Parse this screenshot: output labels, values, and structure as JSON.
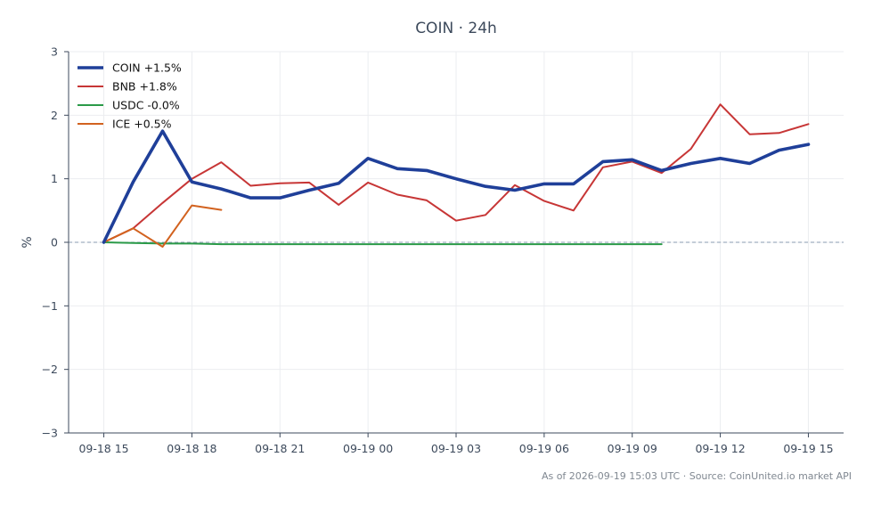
{
  "chart_data": {
    "type": "line",
    "title": "COIN · 24h",
    "xlabel": "",
    "ylabel": "%",
    "ylim": [
      -3,
      3
    ],
    "yticks": [
      {
        "value": -3,
        "label": "−3"
      },
      {
        "value": -2,
        "label": "−2"
      },
      {
        "value": -1,
        "label": "−1"
      },
      {
        "value": 0,
        "label": "0"
      },
      {
        "value": 1,
        "label": "1"
      },
      {
        "value": 2,
        "label": "2"
      },
      {
        "value": 3,
        "label": "3"
      }
    ],
    "xlim": [
      "2026-09-18 13:48",
      "2026-09-19 16:12"
    ],
    "xticks": [
      {
        "x": "2026-09-18 15:00",
        "label": "09-18 15"
      },
      {
        "x": "2026-09-18 18:00",
        "label": "09-18 18"
      },
      {
        "x": "2026-09-18 21:00",
        "label": "09-18 21"
      },
      {
        "x": "2026-09-19 00:00",
        "label": "09-19 00"
      },
      {
        "x": "2026-09-19 03:00",
        "label": "09-19 03"
      },
      {
        "x": "2026-09-19 06:00",
        "label": "09-19 06"
      },
      {
        "x": "2026-09-19 09:00",
        "label": "09-19 09"
      },
      {
        "x": "2026-09-19 12:00",
        "label": "09-19 12"
      },
      {
        "x": "2026-09-19 15:00",
        "label": "09-19 15"
      }
    ],
    "grid": true,
    "reference_line": {
      "y": 0,
      "style": "dashed"
    },
    "legend": "top-left",
    "series": [
      {
        "name": "COIN +1.5%",
        "color": "#1f3f99",
        "linewidth": "thick",
        "x": [
          "2026-09-18 15:00",
          "2026-09-18 16:00",
          "2026-09-18 17:00",
          "2026-09-18 18:00",
          "2026-09-18 19:00",
          "2026-09-18 20:00",
          "2026-09-18 21:00",
          "2026-09-18 22:00",
          "2026-09-18 23:00",
          "2026-09-19 00:00",
          "2026-09-19 01:00",
          "2026-09-19 02:00",
          "2026-09-19 03:00",
          "2026-09-19 04:00",
          "2026-09-19 05:00",
          "2026-09-19 06:00",
          "2026-09-19 07:00",
          "2026-09-19 08:00",
          "2026-09-19 09:00",
          "2026-09-19 10:00",
          "2026-09-19 11:00",
          "2026-09-19 12:00",
          "2026-09-19 13:00",
          "2026-09-19 14:00",
          "2026-09-19 15:00"
        ],
        "values": [
          0.0,
          0.95,
          1.75,
          0.95,
          0.84,
          0.7,
          0.7,
          0.82,
          0.93,
          1.32,
          1.16,
          1.13,
          1.0,
          0.88,
          0.82,
          0.92,
          0.92,
          1.27,
          1.3,
          1.13,
          1.24,
          1.32,
          1.24,
          1.45,
          1.54
        ]
      },
      {
        "name": "BNB +1.8%",
        "color": "#c73636",
        "linewidth": "normal",
        "x": [
          "2026-09-18 15:00",
          "2026-09-18 16:00",
          "2026-09-18 17:00",
          "2026-09-18 18:00",
          "2026-09-18 19:00",
          "2026-09-18 20:00",
          "2026-09-18 21:00",
          "2026-09-18 22:00",
          "2026-09-18 23:00",
          "2026-09-19 00:00",
          "2026-09-19 01:00",
          "2026-09-19 02:00",
          "2026-09-19 03:00",
          "2026-09-19 04:00",
          "2026-09-19 05:00",
          "2026-09-19 06:00",
          "2026-09-19 07:00",
          "2026-09-19 08:00",
          "2026-09-19 09:00",
          "2026-09-19 10:00",
          "2026-09-19 11:00",
          "2026-09-19 12:00",
          "2026-09-19 13:00",
          "2026-09-19 14:00",
          "2026-09-19 15:00"
        ],
        "values": [
          0.0,
          0.22,
          0.62,
          1.0,
          1.26,
          0.89,
          0.93,
          0.94,
          0.59,
          0.94,
          0.75,
          0.66,
          0.34,
          0.43,
          0.9,
          0.65,
          0.5,
          1.18,
          1.27,
          1.09,
          1.47,
          2.17,
          1.7,
          1.72,
          1.86
        ]
      },
      {
        "name": "USDC -0.0%",
        "color": "#2a9a48",
        "linewidth": "normal",
        "x": [
          "2026-09-18 15:00",
          "2026-09-18 16:00",
          "2026-09-18 17:00",
          "2026-09-18 18:00",
          "2026-09-18 19:00",
          "2026-09-18 20:00",
          "2026-09-18 21:00",
          "2026-09-18 22:00",
          "2026-09-18 23:00",
          "2026-09-19 00:00",
          "2026-09-19 01:00",
          "2026-09-19 02:00",
          "2026-09-19 03:00",
          "2026-09-19 04:00",
          "2026-09-19 05:00",
          "2026-09-19 06:00",
          "2026-09-19 07:00",
          "2026-09-19 08:00",
          "2026-09-19 09:00",
          "2026-09-19 10:00"
        ],
        "values": [
          0.0,
          -0.01,
          -0.02,
          -0.02,
          -0.03,
          -0.03,
          -0.03,
          -0.03,
          -0.03,
          -0.03,
          -0.03,
          -0.03,
          -0.03,
          -0.03,
          -0.03,
          -0.03,
          -0.03,
          -0.03,
          -0.03,
          -0.03
        ]
      },
      {
        "name": "ICE +0.5%",
        "color": "#d2621f",
        "linewidth": "normal",
        "x": [
          "2026-09-18 15:00",
          "2026-09-18 16:00",
          "2026-09-18 17:00",
          "2026-09-18 18:00",
          "2026-09-18 19:00"
        ],
        "values": [
          0.0,
          0.22,
          -0.07,
          0.58,
          0.51
        ]
      }
    ],
    "footer": "As of 2026-09-19 15:03 UTC · Source: CoinUnited.io market API"
  }
}
